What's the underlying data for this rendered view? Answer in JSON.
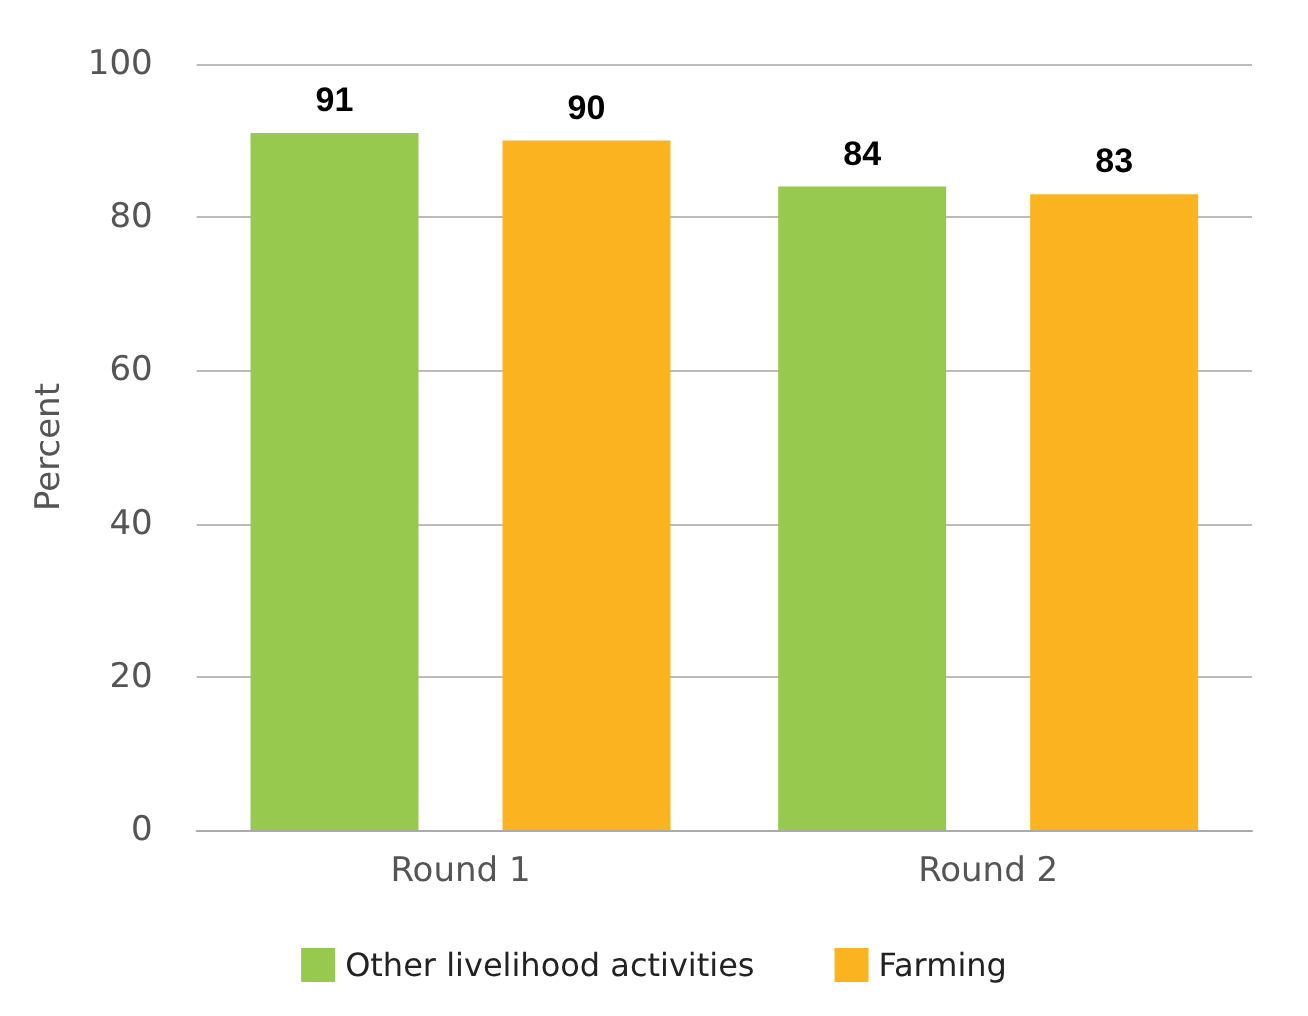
{
  "chart_data": {
    "type": "bar",
    "ylabel": "Percent",
    "categories": [
      "Round 1",
      "Round 2"
    ],
    "series": [
      {
        "name": "Other livelihood activities",
        "color": "#97c94f",
        "values": [
          91,
          84
        ]
      },
      {
        "name": "Farming",
        "color": "#fbb41f",
        "values": [
          90,
          83
        ]
      }
    ],
    "ylim": [
      0,
      100
    ],
    "yticks": [
      0,
      20,
      40,
      60,
      80,
      100
    ],
    "grid": "y",
    "legend": "bottom",
    "data_labels": true
  }
}
